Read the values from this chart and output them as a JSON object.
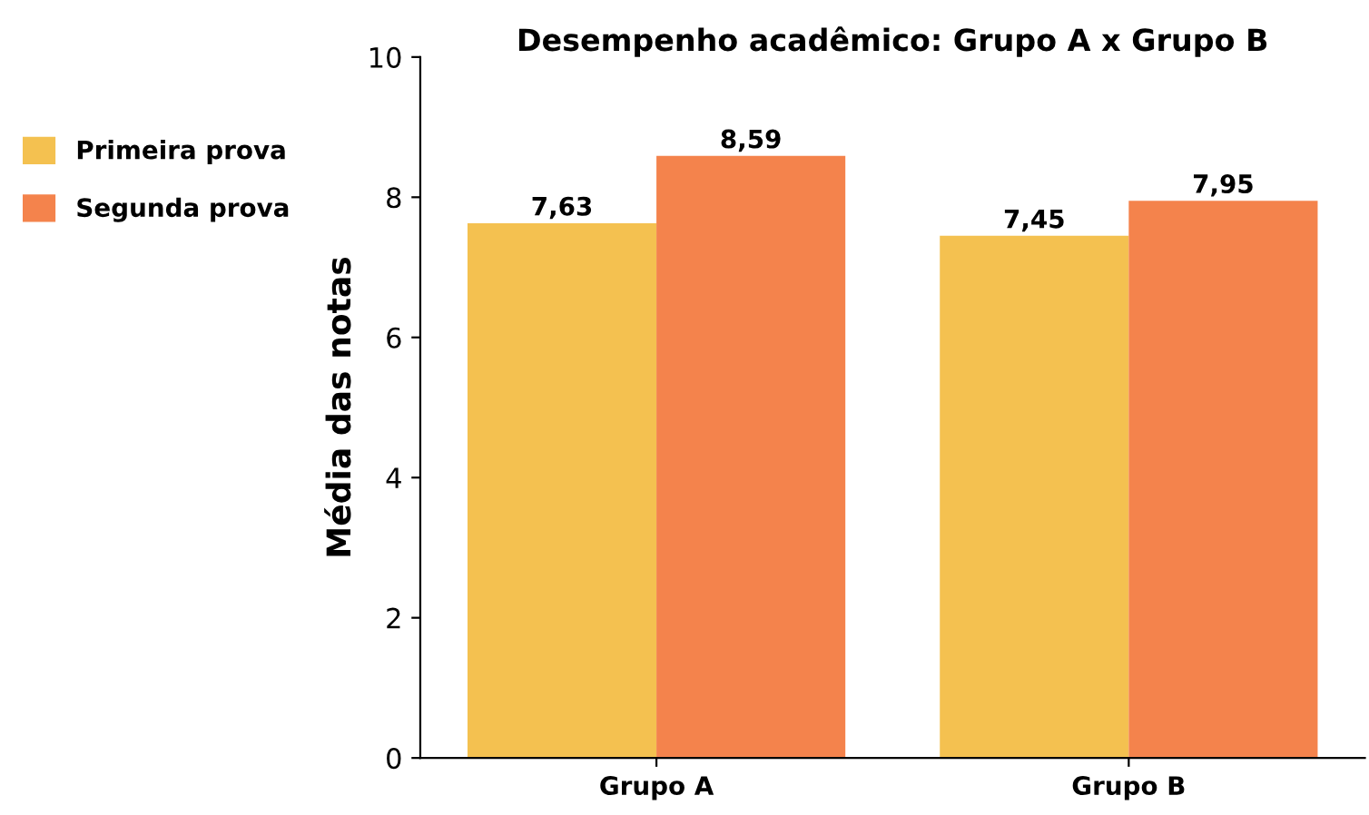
{
  "chart_data": {
    "type": "bar",
    "title": "Desempenho acadêmico: Grupo A x Grupo B",
    "ylabel": "Média das notas",
    "categories": [
      "Grupo A",
      "Grupo B"
    ],
    "series": [
      {
        "name": "Primeira prova",
        "color": "#f4c150",
        "values": [
          7.63,
          7.45
        ],
        "value_labels": [
          "7,63",
          "7,45"
        ]
      },
      {
        "name": "Segunda prova",
        "color": "#f4834c",
        "values": [
          8.59,
          7.95
        ],
        "value_labels": [
          "8,59",
          "7,95"
        ]
      }
    ],
    "ylim": [
      0,
      10
    ],
    "yticks": [
      0,
      2,
      4,
      6,
      8,
      10
    ],
    "grid": false,
    "legend": "left"
  }
}
